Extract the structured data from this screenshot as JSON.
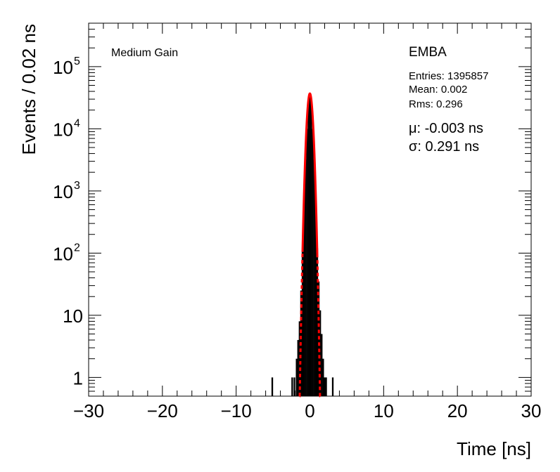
{
  "chart_data": {
    "type": "histogram",
    "xlabel": "Time [ns]",
    "ylabel": "Events / 0.02 ns",
    "xlim": [
      -30,
      30
    ],
    "ylim": [
      0.5,
      500000
    ],
    "log_y": true,
    "grid": false,
    "x_ticks": [
      "−30",
      "−20",
      "−10",
      "0",
      "10",
      "20",
      "30"
    ],
    "y_ticks": [
      {
        "value": 1,
        "base": "1",
        "exp": ""
      },
      {
        "value": 10,
        "base": "10",
        "exp": ""
      },
      {
        "value": 100,
        "base": "10",
        "exp": "2"
      },
      {
        "value": 1000,
        "base": "10",
        "exp": "3"
      },
      {
        "value": 10000,
        "base": "10",
        "exp": "4"
      },
      {
        "value": 100000,
        "base": "10",
        "exp": "5"
      }
    ],
    "top_left_label": "Medium Gain",
    "stats": {
      "title": "EMBA",
      "entries": "Entries: 1395857",
      "mean": "Mean: 0.002",
      "rms": "Rms: 0.296",
      "mu": "μ: -0.003 ns",
      "sigma": "σ: 0.291 ns"
    },
    "histogram": {
      "color": "#000000",
      "bins": [
        {
          "x": -5.1,
          "y": 1
        },
        {
          "x": -2.4,
          "y": 1
        },
        {
          "x": -2.1,
          "y": 1
        },
        {
          "x": -1.8,
          "y": 2
        },
        {
          "x": -1.6,
          "y": 4
        },
        {
          "x": -1.4,
          "y": 8
        },
        {
          "x": -1.2,
          "y": 25
        },
        {
          "x": -1.0,
          "y": 110
        },
        {
          "x": -0.8,
          "y": 700
        },
        {
          "x": -0.6,
          "y": 3200
        },
        {
          "x": -0.4,
          "y": 10000
        },
        {
          "x": -0.2,
          "y": 26000
        },
        {
          "x": 0.0,
          "y": 37000
        },
        {
          "x": 0.2,
          "y": 26000
        },
        {
          "x": 0.4,
          "y": 10000
        },
        {
          "x": 0.6,
          "y": 3200
        },
        {
          "x": 0.8,
          "y": 700
        },
        {
          "x": 1.0,
          "y": 120
        },
        {
          "x": 1.2,
          "y": 35
        },
        {
          "x": 1.4,
          "y": 12
        },
        {
          "x": 1.6,
          "y": 5
        },
        {
          "x": 1.8,
          "y": 2
        },
        {
          "x": 2.0,
          "y": 1
        },
        {
          "x": 2.2,
          "y": 1
        },
        {
          "x": 3.1,
          "y": 1
        }
      ]
    },
    "fit": {
      "function": "gaussian",
      "color": "#ff0000",
      "amplitude": 37000,
      "mu": -0.003,
      "sigma": 0.291,
      "solid_range": [
        -1.0,
        1.0
      ],
      "dashed_range": [
        -1.4,
        1.4
      ]
    }
  }
}
